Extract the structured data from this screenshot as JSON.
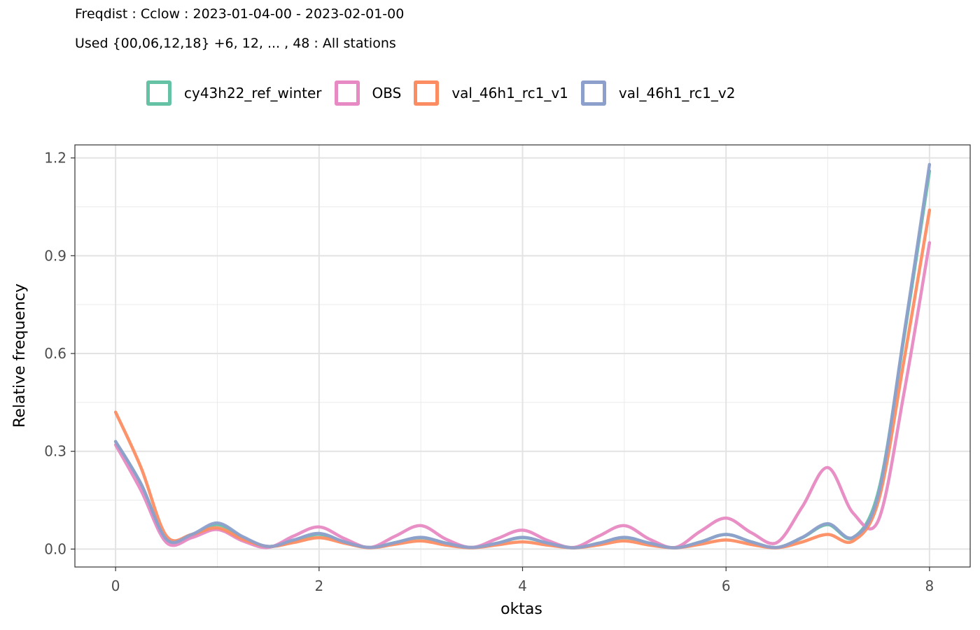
{
  "title": {
    "line1": "Freqdist : Cclow : 2023-01-04-00 - 2023-02-01-00",
    "line2": "Used {00,06,12,18} +6, 12, ... , 48 : All stations"
  },
  "chart_data": {
    "type": "line",
    "xlabel": "oktas",
    "ylabel": "Relative frequency",
    "xlim": [
      -0.4,
      8.4
    ],
    "ylim": [
      -0.055,
      1.24
    ],
    "x_ticks": [
      0,
      2,
      4,
      6,
      8
    ],
    "x_tick_labels": [
      "0",
      "2",
      "4",
      "6",
      "8"
    ],
    "y_ticks": [
      0.0,
      0.3,
      0.6,
      0.9,
      1.2
    ],
    "y_tick_labels": [
      "0.0",
      "0.3",
      "0.6",
      "0.9",
      "1.2"
    ],
    "grid": true,
    "legend_position": "top",
    "series": [
      {
        "name": "cy43h22_ref_winter",
        "color": "#66c2a5",
        "x": [
          0,
          0.25,
          0.5,
          0.75,
          1,
          1.25,
          1.5,
          1.75,
          2,
          2.25,
          2.5,
          2.75,
          3,
          3.25,
          3.5,
          3.75,
          4,
          4.25,
          4.5,
          4.75,
          5,
          5.25,
          5.5,
          5.75,
          6,
          6.25,
          6.5,
          6.75,
          7,
          7.25,
          7.5,
          7.75,
          8
        ],
        "y": [
          0.33,
          0.2,
          0.03,
          0.04,
          0.075,
          0.035,
          0.008,
          0.025,
          0.045,
          0.022,
          0.005,
          0.02,
          0.035,
          0.018,
          0.005,
          0.018,
          0.035,
          0.018,
          0.004,
          0.018,
          0.035,
          0.018,
          0.004,
          0.022,
          0.045,
          0.022,
          0.005,
          0.035,
          0.075,
          0.035,
          0.18,
          0.65,
          1.16
        ]
      },
      {
        "name": "OBS",
        "color": "#e78ac3",
        "x": [
          0,
          0.25,
          0.5,
          0.75,
          1,
          1.25,
          1.5,
          1.75,
          2,
          2.25,
          2.5,
          2.75,
          3,
          3.25,
          3.5,
          3.75,
          4,
          4.25,
          4.5,
          4.75,
          5,
          5.25,
          5.5,
          5.75,
          6,
          6.25,
          6.5,
          6.75,
          7,
          7.25,
          7.5,
          7.75,
          8
        ],
        "y": [
          0.32,
          0.18,
          0.02,
          0.035,
          0.06,
          0.025,
          0.005,
          0.04,
          0.068,
          0.032,
          0.005,
          0.04,
          0.072,
          0.03,
          0.005,
          0.032,
          0.058,
          0.026,
          0.005,
          0.04,
          0.072,
          0.03,
          0.005,
          0.055,
          0.095,
          0.05,
          0.02,
          0.13,
          0.25,
          0.11,
          0.09,
          0.48,
          0.94
        ]
      },
      {
        "name": "val_46h1_rc1_v1",
        "color": "#fc8d62",
        "x": [
          0,
          0.25,
          0.5,
          0.75,
          1,
          1.25,
          1.5,
          1.75,
          2,
          2.25,
          2.5,
          2.75,
          3,
          3.25,
          3.5,
          3.75,
          4,
          4.25,
          4.5,
          4.75,
          5,
          5.25,
          5.5,
          5.75,
          6,
          6.25,
          6.5,
          6.75,
          7,
          7.25,
          7.5,
          7.75,
          8
        ],
        "y": [
          0.42,
          0.25,
          0.04,
          0.045,
          0.065,
          0.03,
          0.008,
          0.02,
          0.035,
          0.018,
          0.004,
          0.015,
          0.025,
          0.012,
          0.004,
          0.013,
          0.022,
          0.012,
          0.004,
          0.013,
          0.025,
          0.012,
          0.004,
          0.015,
          0.028,
          0.014,
          0.004,
          0.022,
          0.045,
          0.025,
          0.15,
          0.58,
          1.04
        ]
      },
      {
        "name": "val_46h1_rc1_v2",
        "color": "#8da0cb",
        "x": [
          0,
          0.25,
          0.5,
          0.75,
          1,
          1.25,
          1.5,
          1.75,
          2,
          2.25,
          2.5,
          2.75,
          3,
          3.25,
          3.5,
          3.75,
          4,
          4.25,
          4.5,
          4.75,
          5,
          5.25,
          5.5,
          5.75,
          6,
          6.25,
          6.5,
          6.75,
          7,
          7.25,
          7.5,
          7.75,
          8
        ],
        "y": [
          0.33,
          0.2,
          0.03,
          0.045,
          0.08,
          0.038,
          0.008,
          0.028,
          0.048,
          0.022,
          0.005,
          0.02,
          0.036,
          0.018,
          0.005,
          0.018,
          0.036,
          0.018,
          0.004,
          0.018,
          0.036,
          0.018,
          0.004,
          0.022,
          0.045,
          0.022,
          0.005,
          0.036,
          0.078,
          0.036,
          0.17,
          0.66,
          1.18
        ]
      }
    ]
  }
}
